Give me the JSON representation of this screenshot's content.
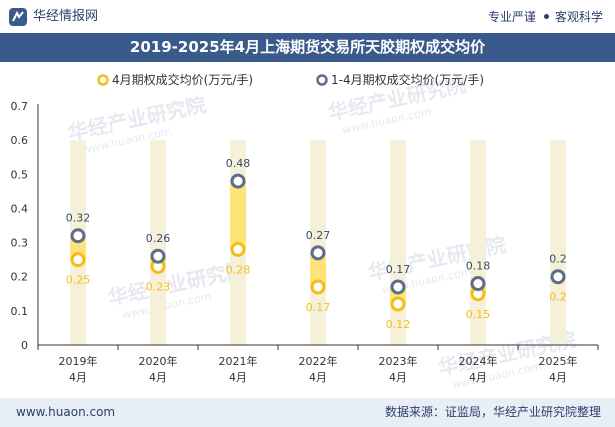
{
  "header": {
    "brand": "华经情报网",
    "tagline_left": "专业严谨",
    "tagline_right": "客观科学"
  },
  "title": "2019-2025年4月上海期货交易所天胶期权成交均价",
  "watermark": "华经产业研究院",
  "watermark_url": "www.huaon.com",
  "footer": {
    "url": "www.huaon.com",
    "source": "数据来源：证监局，华经产业研究院整理"
  },
  "colors": {
    "band": "#f5f0da",
    "connector": "#fde37a",
    "series_april": "#f6bd16",
    "series_ytd": "#5b6e8a",
    "title_bg": "#3a5a8c",
    "footer_bg": "#e8eef6"
  },
  "chart_data": {
    "type": "line",
    "categories": [
      "2019年\n4月",
      "2020年\n4月",
      "2021年\n4月",
      "2022年\n4月",
      "2023年\n4月",
      "2024年\n4月",
      "2025年\n4月"
    ],
    "series": [
      {
        "name": "4月期权成交均价(万元/手)",
        "values": [
          0.25,
          0.23,
          0.28,
          0.17,
          0.12,
          0.15,
          0.2
        ]
      },
      {
        "name": "1-4月期权成交均价(万元/手)",
        "values": [
          0.32,
          0.26,
          0.48,
          0.27,
          0.17,
          0.18,
          0.2
        ]
      }
    ],
    "ylim": [
      0,
      0.7
    ],
    "yticks": [
      "0",
      "0.1",
      "0.2",
      "0.3",
      "0.4",
      "0.5",
      "0.6",
      "0.7"
    ],
    "legend_position": "top",
    "grid": false
  }
}
